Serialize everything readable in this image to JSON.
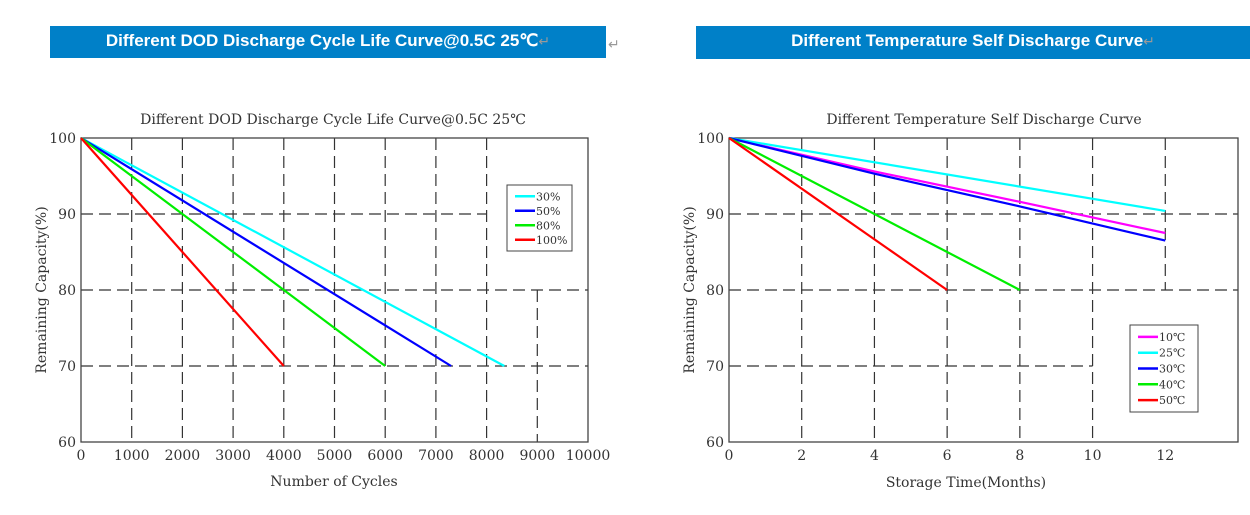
{
  "headers": {
    "left": "Different DOD Discharge Cycle Life Curve@0.5C  25℃",
    "right": "Different Temperature Self Discharge Curve",
    "return_mark": "↵"
  },
  "chart_data": [
    {
      "type": "line",
      "title": "Different DOD Discharge Cycle Life Curve@0.5C 25℃",
      "xlabel": "Number of Cycles",
      "ylabel": "Remaining Capacity(%)",
      "xlim": [
        0,
        10000
      ],
      "ylim": [
        60,
        100
      ],
      "xticks": [
        "0",
        "1000",
        "2000",
        "3000",
        "4000",
        "5000",
        "6000",
        "7000",
        "8000",
        "9000",
        "10000"
      ],
      "yticks": [
        "60",
        "70",
        "80",
        "90",
        "100"
      ],
      "grid": true,
      "legend_position": "top-right",
      "series": [
        {
          "name": "30%",
          "color": "#00FFFF",
          "x": [
            0,
            8350
          ],
          "y": [
            100,
            70
          ]
        },
        {
          "name": "50%",
          "color": "#0000FF",
          "x": [
            0,
            7300
          ],
          "y": [
            100,
            70
          ]
        },
        {
          "name": "80%",
          "color": "#00EE00",
          "x": [
            0,
            6000
          ],
          "y": [
            100,
            70
          ]
        },
        {
          "name": "100%",
          "color": "#FF0000",
          "x": [
            0,
            4000
          ],
          "y": [
            100,
            70
          ]
        }
      ]
    },
    {
      "type": "line",
      "title": "Different Temperature Self Discharge Curve",
      "xlabel": "Storage Time(Months)",
      "ylabel": "Remaining Capacity(%)",
      "xlim": [
        0,
        14
      ],
      "ylim": [
        60,
        100
      ],
      "xticks": [
        "0",
        "2",
        "4",
        "6",
        "8",
        "10",
        "12"
      ],
      "yticks": [
        "60",
        "70",
        "80",
        "90",
        "100"
      ],
      "grid": true,
      "legend_position": "bottom-right",
      "series": [
        {
          "name": "10℃",
          "color": "#FF00FF",
          "x": [
            0,
            4,
            8,
            12
          ],
          "y": [
            100,
            95.6,
            91.6,
            87.5
          ]
        },
        {
          "name": "25℃",
          "color": "#00FFFF",
          "x": [
            0,
            12
          ],
          "y": [
            100,
            90.4
          ]
        },
        {
          "name": "30℃",
          "color": "#0000FF",
          "x": [
            0,
            4,
            8,
            12
          ],
          "y": [
            100,
            95.3,
            91,
            86.5
          ]
        },
        {
          "name": "40℃",
          "color": "#00EE00",
          "x": [
            0,
            8
          ],
          "y": [
            100,
            80
          ]
        },
        {
          "name": "50℃",
          "color": "#FF0000",
          "x": [
            0,
            6
          ],
          "y": [
            100,
            80
          ]
        }
      ]
    }
  ]
}
